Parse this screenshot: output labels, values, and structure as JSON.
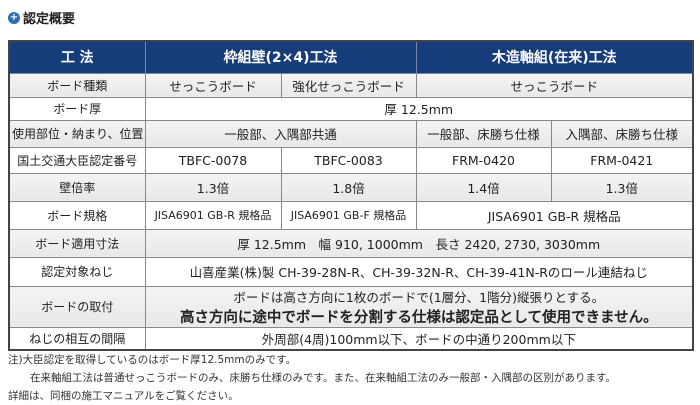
{
  "title": "認定概要",
  "header": {
    "label": "工 法",
    "col_a": "枠組壁(2×4)工法",
    "col_b": "木造軸組(在来)工法"
  },
  "rows": {
    "board_type": {
      "label": "ボード種類",
      "c1": "せっこうボード",
      "c2": "強化せっこうボード",
      "c3": "せっこうボード"
    },
    "thickness": {
      "label": "ボード厚",
      "value": "厚 12.5mm"
    },
    "usage": {
      "label": "使用部位・納まり、位置",
      "c12": "一般部、入隅部共通",
      "c3": "一般部、床勝ち仕様",
      "c4": "入隅部、床勝ち仕様"
    },
    "cert_no": {
      "label": "国土交通大臣認定番号",
      "c1": "TBFC-0078",
      "c2": "TBFC-0083",
      "c3": "FRM-0420",
      "c4": "FRM-0421"
    },
    "ratio": {
      "label": "壁倍率",
      "c1": "1.3倍",
      "c2": "1.8倍",
      "c3": "1.4倍",
      "c4": "1.3倍"
    },
    "spec": {
      "label": "ボード規格",
      "c1": "JISA6901 GB-R 規格品",
      "c2": "JISA6901 GB-F 規格品",
      "c34": "JISA6901 GB-R 規格品"
    },
    "dims": {
      "label": "ボード適用寸法",
      "value": "厚 12.5mm　幅 910, 1000mm　長さ 2420, 2730, 3030mm"
    },
    "screw": {
      "label": "認定対象ねじ",
      "value": "山喜産業(株)製 CH-39-28N-R、CH-39-32N-R、CH-39-41N-Rのロール連結ねじ"
    },
    "mount": {
      "label": "ボードの取付",
      "line1": "ボードは高さ方向に1枚のボードで(1層分、1階分)縦張りとする。",
      "line2": "高さ方向に途中でボードを分割する仕様は認定品として使用できません。"
    },
    "spacing": {
      "label": "ねじの相互の間隔",
      "value": "外周部(4周)100mm以下、ボードの中通り200mm以下"
    }
  },
  "notes": [
    "注)大臣認定を取得しているのはボード厚12.5mmのみです。",
    "在来軸組工法は普通せっこうボードのみ、床勝ち仕様のみです。また、在来軸組工法のみ一般部・入隅部の区別があります。",
    "詳細は、同梱の施工マニュアルをご覧ください。"
  ]
}
